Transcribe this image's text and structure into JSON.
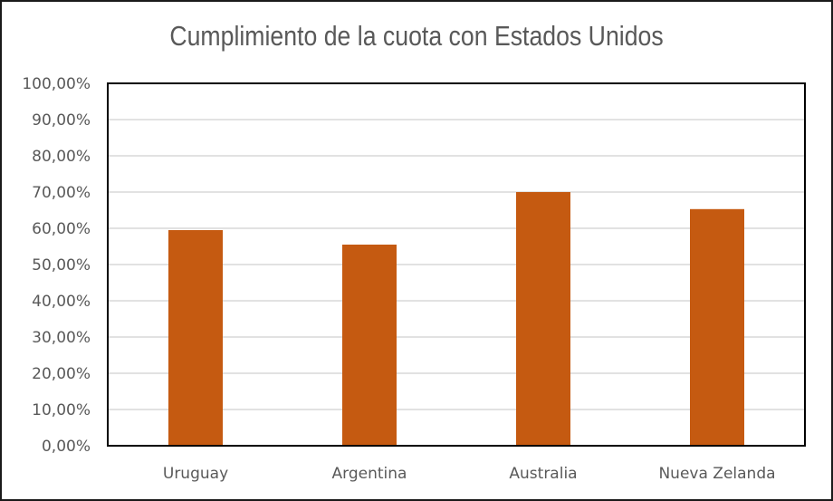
{
  "chart_data": {
    "type": "bar",
    "title": "Cumplimiento  de la cuota con Estados Unidos",
    "categories": [
      "Uruguay",
      "Argentina",
      "Australia",
      "Nueva Zelanda"
    ],
    "values": [
      59.5,
      55.5,
      70.0,
      65.3
    ],
    "ylim": [
      0,
      100
    ],
    "yticks": [
      "0,00%",
      "10,00%",
      "20,00%",
      "30,00%",
      "40,00%",
      "50,00%",
      "60,00%",
      "70,00%",
      "80,00%",
      "90,00%",
      "100,00%"
    ],
    "grid": true,
    "bar_color": "#C55A11",
    "grid_color": "#D9D9D9"
  }
}
